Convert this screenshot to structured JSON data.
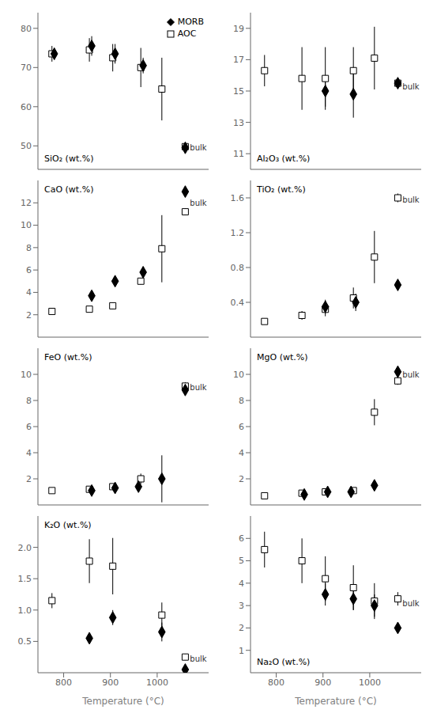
{
  "chart_data": [
    {
      "type": "scatter",
      "title": "SiO₂ (wt.%)",
      "xlim": [
        745,
        1110
      ],
      "xticks": [
        800,
        900,
        1000
      ],
      "ylim": [
        44,
        84
      ],
      "yticks": [
        50,
        60,
        70,
        80
      ],
      "grid": false,
      "tick_labels": "y",
      "legend": "upper right",
      "series": [
        {
          "name": "MORB",
          "color": "black",
          "marker": "diamond",
          "x": [
            780,
            860,
            910,
            970,
            1060
          ],
          "values": [
            73.5,
            75.5,
            73.5,
            70.5,
            49.5
          ],
          "errors": [
            1.5,
            2.5,
            2.5,
            2.0,
            0.5
          ]
        },
        {
          "name": "AOC",
          "color": "black",
          "marker": "open_square",
          "x": [
            775,
            855,
            905,
            965,
            1010,
            1060
          ],
          "values": [
            73.5,
            74.5,
            72.5,
            70.0,
            64.5,
            49.8
          ],
          "errors": [
            2.0,
            3.0,
            3.5,
            5.0,
            8.0,
            0.5
          ]
        }
      ],
      "annotations": [
        {
          "text": "bulk",
          "x": 1065,
          "y": 49.5
        }
      ]
    },
    {
      "type": "scatter",
      "title": "Al₂O₃ (wt.%)",
      "xlim": [
        745,
        1110
      ],
      "xticks": [
        800,
        900,
        1000
      ],
      "ylim": [
        10,
        20
      ],
      "yticks": [
        11,
        13,
        15,
        17,
        19
      ],
      "grid": false,
      "tick_labels": "y",
      "series": [
        {
          "name": "MORB",
          "color": "black",
          "marker": "diamond",
          "x": [
            905,
            965,
            1060
          ],
          "values": [
            15.0,
            14.8,
            15.5
          ],
          "errors": [
            1.0,
            1.5,
            0.3
          ]
        },
        {
          "name": "AOC",
          "color": "black",
          "marker": "open_square",
          "x": [
            775,
            855,
            905,
            965,
            1010,
            1060
          ],
          "values": [
            16.3,
            15.8,
            15.8,
            16.3,
            17.1,
            15.5
          ],
          "errors": [
            1.0,
            2.0,
            2.0,
            1.5,
            2.0,
            0.3
          ]
        }
      ],
      "annotations": [
        {
          "text": "bulk",
          "x": 1065,
          "y": 15.3
        }
      ]
    },
    {
      "type": "scatter",
      "title": "CaO (wt.%)",
      "xlim": [
        745,
        1110
      ],
      "xticks": [
        800,
        900,
        1000
      ],
      "ylim": [
        0,
        14
      ],
      "yticks": [
        2,
        4,
        6,
        8,
        10,
        12
      ],
      "grid": false,
      "tick_labels": "y",
      "series": [
        {
          "name": "MORB",
          "color": "black",
          "marker": "diamond",
          "x": [
            860,
            910,
            970,
            1060
          ],
          "values": [
            3.7,
            5.0,
            5.8,
            13.0
          ],
          "errors": [
            0.3,
            0.3,
            0.5,
            0.3
          ]
        },
        {
          "name": "AOC",
          "color": "black",
          "marker": "open_square",
          "x": [
            775,
            855,
            905,
            965,
            1010,
            1060
          ],
          "values": [
            2.3,
            2.5,
            2.8,
            5.0,
            7.9,
            11.2
          ],
          "errors": [
            0.2,
            0.2,
            0.3,
            0.3,
            3.0,
            0.3
          ]
        }
      ],
      "annotations": [
        {
          "text": "bulk",
          "x": 1065,
          "y": 12.0
        }
      ]
    },
    {
      "type": "scatter",
      "title": "TiO₂ (wt.%)",
      "xlim": [
        745,
        1110
      ],
      "xticks": [
        800,
        900,
        1000
      ],
      "ylim": [
        0,
        1.8
      ],
      "yticks": [
        0.4,
        0.8,
        1.2,
        1.6
      ],
      "grid": false,
      "tick_labels": "y",
      "series": [
        {
          "name": "MORB",
          "color": "black",
          "marker": "diamond",
          "x": [
            905,
            970,
            1060
          ],
          "values": [
            0.35,
            0.4,
            0.6
          ],
          "errors": [
            0.08,
            0.1,
            0.05
          ]
        },
        {
          "name": "AOC",
          "color": "black",
          "marker": "open_square",
          "x": [
            775,
            855,
            905,
            965,
            1010,
            1060
          ],
          "values": [
            0.18,
            0.25,
            0.32,
            0.45,
            0.92,
            1.6
          ],
          "errors": [
            0.03,
            0.05,
            0.08,
            0.12,
            0.3,
            0.05
          ]
        }
      ],
      "annotations": [
        {
          "text": "bulk",
          "x": 1065,
          "y": 1.58
        }
      ]
    },
    {
      "type": "scatter",
      "title": "FeO (wt.%)",
      "xlim": [
        745,
        1110
      ],
      "xticks": [
        800,
        900,
        1000
      ],
      "ylim": [
        0,
        12
      ],
      "yticks": [
        2,
        4,
        6,
        8,
        10
      ],
      "grid": false,
      "tick_labels": "y",
      "series": [
        {
          "name": "MORB",
          "color": "black",
          "marker": "diamond",
          "x": [
            860,
            910,
            960,
            1010,
            1060
          ],
          "values": [
            1.1,
            1.3,
            1.4,
            2.0,
            8.8
          ],
          "errors": [
            0.2,
            0.2,
            0.2,
            1.8,
            0.3
          ]
        },
        {
          "name": "AOC",
          "color": "black",
          "marker": "open_square",
          "x": [
            775,
            855,
            905,
            965,
            1060
          ],
          "values": [
            1.1,
            1.2,
            1.4,
            2.0,
            9.1
          ],
          "errors": [
            0.15,
            0.15,
            0.2,
            0.4,
            0.3
          ]
        }
      ],
      "annotations": [
        {
          "text": "bulk",
          "x": 1065,
          "y": 9.0
        }
      ]
    },
    {
      "type": "scatter",
      "title": "MgO (wt.%)",
      "xlim": [
        745,
        1110
      ],
      "xticks": [
        800,
        900,
        1000
      ],
      "ylim": [
        0,
        12
      ],
      "yticks": [
        2,
        4,
        6,
        8,
        10
      ],
      "grid": false,
      "tick_labels": "y",
      "series": [
        {
          "name": "MORB",
          "color": "black",
          "marker": "diamond",
          "x": [
            860,
            910,
            960,
            1010,
            1060
          ],
          "values": [
            0.8,
            1.0,
            1.0,
            1.5,
            10.2
          ],
          "errors": [
            0.2,
            0.2,
            0.2,
            0.4,
            0.3
          ]
        },
        {
          "name": "AOC",
          "color": "black",
          "marker": "open_square",
          "x": [
            775,
            855,
            905,
            965,
            1010,
            1060
          ],
          "values": [
            0.7,
            0.9,
            1.0,
            1.1,
            7.1,
            9.5
          ],
          "errors": [
            0.15,
            0.15,
            0.2,
            0.2,
            1.0,
            0.3
          ]
        }
      ],
      "annotations": [
        {
          "text": "bulk",
          "x": 1065,
          "y": 10.0
        }
      ]
    },
    {
      "type": "scatter",
      "title": "K₂O (wt.%)",
      "xlim": [
        745,
        1110
      ],
      "xticks": [
        800,
        900,
        1000
      ],
      "ylim": [
        0,
        2.5
      ],
      "yticks": [
        0.5,
        {
          "value": 1.0,
          "label": "1.0"
        },
        1.5,
        {
          "value": 2.0,
          "label": "2.0"
        }
      ],
      "grid": false,
      "xlabel": "Temperature (°C)",
      "series": [
        {
          "name": "MORB",
          "color": "black",
          "marker": "diamond",
          "x": [
            855,
            905,
            1010,
            1060
          ],
          "values": [
            0.55,
            0.88,
            0.65,
            0.05
          ],
          "errors": [
            0.08,
            0.12,
            0.15,
            0.02
          ]
        },
        {
          "name": "AOC",
          "color": "black",
          "marker": "open_square",
          "x": [
            775,
            855,
            905,
            1010,
            1060
          ],
          "values": [
            1.15,
            1.78,
            1.7,
            0.92,
            0.25
          ],
          "errors": [
            0.12,
            0.35,
            0.45,
            0.2,
            0.05
          ]
        }
      ],
      "annotations": [
        {
          "text": "bulk",
          "x": 1065,
          "y": 0.22
        }
      ]
    },
    {
      "type": "scatter",
      "title": "Na₂O (wt.%)",
      "xlim": [
        745,
        1110
      ],
      "xticks": [
        800,
        900,
        1000
      ],
      "ylim": [
        0,
        7
      ],
      "yticks": [
        1,
        2,
        3,
        4,
        5,
        6
      ],
      "grid": false,
      "xlabel": "Temperature (°C)",
      "series": [
        {
          "name": "MORB",
          "color": "black",
          "marker": "diamond",
          "x": [
            905,
            965,
            1010,
            1060
          ],
          "values": [
            3.5,
            3.3,
            3.0,
            2.0
          ],
          "errors": [
            0.5,
            0.5,
            0.5,
            0.15
          ]
        },
        {
          "name": "AOC",
          "color": "black",
          "marker": "open_square",
          "x": [
            775,
            855,
            905,
            965,
            1010,
            1060
          ],
          "values": [
            5.5,
            5.0,
            4.2,
            3.8,
            3.2,
            3.3
          ],
          "errors": [
            0.8,
            1.0,
            1.0,
            1.0,
            0.8,
            0.3
          ]
        }
      ],
      "annotations": [
        {
          "text": "bulk",
          "x": 1065,
          "y": 3.1
        }
      ]
    }
  ]
}
